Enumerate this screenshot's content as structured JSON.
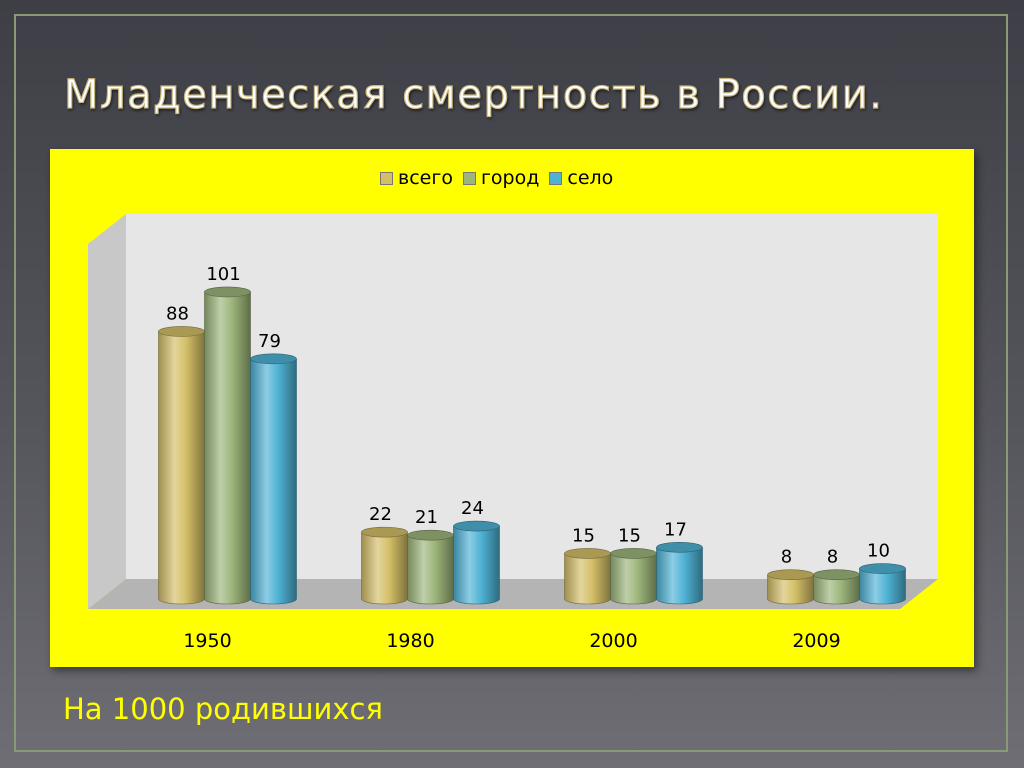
{
  "slide": {
    "title": "Младенческая смертность в России.",
    "caption": "На 1000 родившихся"
  },
  "colors": {
    "panel": "#ffff00",
    "series": [
      "#d4bf68",
      "#9db57a",
      "#4fb2d5"
    ]
  },
  "chart_data": {
    "type": "bar",
    "style": "3d-cylinder",
    "title": "",
    "xlabel": "",
    "ylabel": "",
    "categories": [
      "1950",
      "1980",
      "2000",
      "2009"
    ],
    "series": [
      {
        "name": "всего",
        "values": [
          88,
          22,
          15,
          8
        ]
      },
      {
        "name": "город",
        "values": [
          101,
          21,
          15,
          8
        ]
      },
      {
        "name": "село",
        "values": [
          79,
          24,
          17,
          10
        ]
      }
    ],
    "ylim": [
      0,
      120
    ],
    "grid": false,
    "legend_position": "top",
    "data_labels": true
  }
}
